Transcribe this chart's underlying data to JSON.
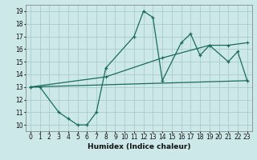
{
  "xlabel": "Humidex (Indice chaleur)",
  "background_color": "#cce8e8",
  "grid_color": "#aacccc",
  "line_color": "#1a6b5a",
  "xlim": [
    -0.5,
    23.5
  ],
  "ylim": [
    9.5,
    19.5
  ],
  "xticks": [
    0,
    1,
    2,
    3,
    4,
    5,
    6,
    7,
    8,
    9,
    10,
    11,
    12,
    13,
    14,
    15,
    16,
    17,
    18,
    19,
    20,
    21,
    22,
    23
  ],
  "yticks": [
    10,
    11,
    12,
    13,
    14,
    15,
    16,
    17,
    18,
    19
  ],
  "line1_x": [
    0,
    1,
    3,
    4,
    5,
    6,
    7,
    8,
    11,
    12,
    13,
    14,
    16,
    17,
    18,
    19,
    21,
    22,
    23
  ],
  "line1_y": [
    13.0,
    13.0,
    11.0,
    10.5,
    10.0,
    10.0,
    11.0,
    14.5,
    17.0,
    19.0,
    18.5,
    13.5,
    16.5,
    17.2,
    15.5,
    16.3,
    15.0,
    15.8,
    13.5
  ],
  "line2_x": [
    0,
    23
  ],
  "line2_y": [
    13.0,
    13.5
  ],
  "line3_x": [
    0,
    8,
    14,
    19,
    21,
    23
  ],
  "line3_y": [
    13.0,
    13.8,
    15.3,
    16.3,
    16.3,
    16.5
  ]
}
